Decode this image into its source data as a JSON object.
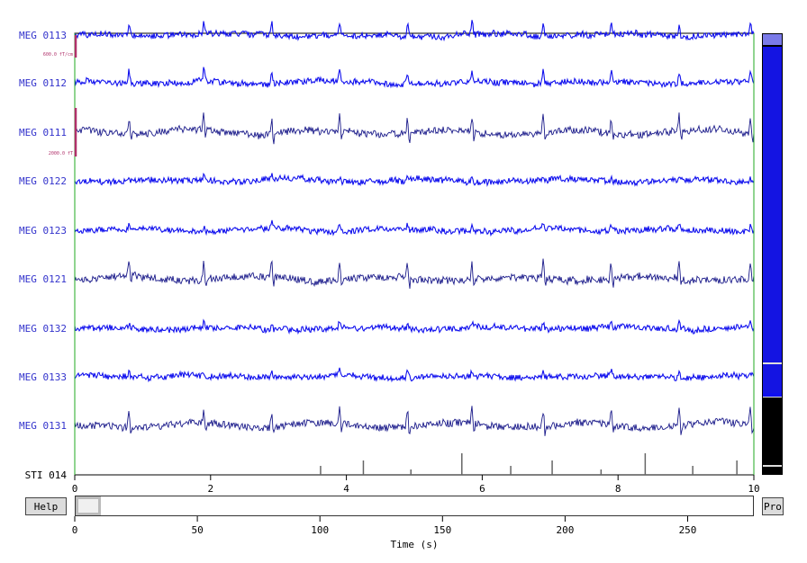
{
  "channels": [
    {
      "name": "MEG 0113",
      "color": "#1010ee"
    },
    {
      "name": "MEG 0112",
      "color": "#1010ee"
    },
    {
      "name": "MEG 0111",
      "color": "#1a1a8a"
    },
    {
      "name": "MEG 0122",
      "color": "#1010ee"
    },
    {
      "name": "MEG 0123",
      "color": "#1010ee"
    },
    {
      "name": "MEG 0121",
      "color": "#1a1a8a"
    },
    {
      "name": "MEG 0132",
      "color": "#1010ee"
    },
    {
      "name": "MEG 0133",
      "color": "#1010ee"
    },
    {
      "name": "MEG 0131",
      "color": "#1a1a8a"
    },
    {
      "name": "STI 014",
      "color": "#000000"
    }
  ],
  "scale_bars": [
    {
      "label": "600.0 fT/cm"
    },
    {
      "label": "2000.0 fT"
    }
  ],
  "time_axis": {
    "ticks": [
      "0",
      "2",
      "4",
      "6",
      "8",
      "10"
    ],
    "range": [
      0,
      10
    ]
  },
  "overview_axis": {
    "ticks": [
      "0",
      "50",
      "100",
      "150",
      "200",
      "250"
    ],
    "range": [
      0,
      277
    ],
    "label": "Time (s)",
    "window_range": [
      0,
      10
    ]
  },
  "stim_events": [
    3.62,
    4.25,
    4.95,
    5.7,
    6.42,
    7.03,
    7.75,
    8.4,
    9.1,
    9.75
  ],
  "heartbeats": [
    0.8,
    1.9,
    2.9,
    3.9,
    4.9,
    5.85,
    6.9,
    7.9,
    8.9,
    9.95
  ],
  "buttons": {
    "help": "Help",
    "proj": "Proj"
  },
  "colors": {
    "grad": "#1010ee",
    "mag": "#1a1a8a",
    "stim": "#000000",
    "scale_bar": "#b0306a",
    "axis_line": "#22aa22",
    "scroll_fill": "#1010ee",
    "scroll_bg": "#000000"
  }
}
